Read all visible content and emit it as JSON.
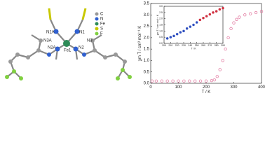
{
  "structure": {
    "atoms": [
      "N1A",
      "N3A",
      "N2A",
      "Fe1",
      "N1",
      "N2",
      "N3"
    ],
    "legend": [
      "C",
      "N",
      "Fe",
      "S",
      "F"
    ]
  },
  "chart_data": [
    {
      "type": "scatter",
      "xlabel": "T / K",
      "ylabel": "χm T / cm³ mol⁻¹ K",
      "x": [
        5,
        20,
        40,
        60,
        80,
        100,
        120,
        140,
        160,
        180,
        200,
        220,
        230,
        240,
        250,
        260,
        270,
        280,
        290,
        300,
        310,
        320,
        340,
        360,
        380,
        400
      ],
      "series": [
        {
          "color": "#e0709a",
          "values": [
            0.1,
            0.1,
            0.1,
            0.1,
            0.1,
            0.1,
            0.1,
            0.1,
            0.1,
            0.1,
            0.1,
            0.12,
            0.15,
            0.3,
            0.6,
            1.0,
            1.5,
            2.0,
            2.4,
            2.65,
            2.8,
            2.9,
            3.0,
            3.05,
            3.1,
            3.15
          ]
        }
      ],
      "xlim": [
        0,
        400
      ],
      "ylim": [
        0,
        3.5
      ],
      "xticks": [
        0,
        100,
        200,
        300,
        400
      ],
      "yticks": [
        {
          "value": 0,
          "label": "0.0"
        },
        0.5,
        {
          "value": 1,
          "label": "1.0"
        },
        1.5,
        {
          "value": 2,
          "label": "2.0"
        },
        2.5,
        {
          "value": 3,
          "label": "3.0"
        },
        3.5
      ]
    },
    {
      "type": "scatter",
      "xlabel": "T / K",
      "ylabel": "χm T / cm³ mol⁻¹ K",
      "x": [
        205,
        210,
        215,
        220,
        225,
        230,
        235,
        240,
        245,
        250,
        255,
        260,
        265,
        270,
        275,
        280,
        285,
        290
      ],
      "series": [
        {
          "color": "#3050c0",
          "values": [
            0.4,
            0.5,
            0.6,
            0.75,
            0.9,
            1.0,
            1.2,
            1.35,
            1.5,
            1.7,
            null,
            null,
            null,
            null,
            null,
            null,
            null,
            null
          ]
        },
        {
          "color": "#d03040",
          "values": [
            null,
            null,
            null,
            null,
            null,
            null,
            null,
            null,
            null,
            null,
            1.9,
            2.05,
            2.2,
            2.35,
            2.5,
            2.6,
            2.75,
            2.85
          ]
        }
      ],
      "xlim": [
        200,
        290
      ],
      "ylim": [
        0,
        3
      ],
      "xticks": [
        200,
        210,
        220,
        230,
        240,
        250,
        260,
        270,
        280,
        290
      ],
      "yticks": [
        {
          "value": 0,
          "label": "0.0"
        },
        0.5,
        {
          "value": 1,
          "label": "1.0"
        },
        1.5,
        {
          "value": 2,
          "label": "2.0"
        },
        2.5,
        {
          "value": 3,
          "label": "3.0"
        }
      ]
    }
  ]
}
